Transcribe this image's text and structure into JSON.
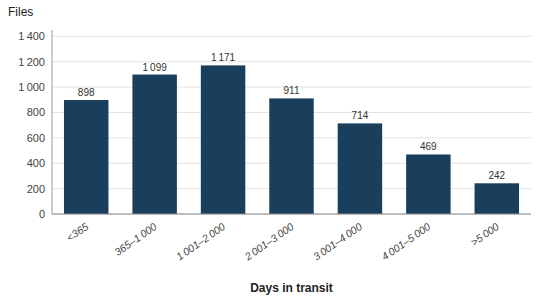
{
  "chart_data": {
    "type": "bar",
    "categories": [
      "<365",
      "365–1 000",
      "1 001–2 000",
      "2 001–3 000",
      "3 001–4 000",
      "4 001–5 000",
      ">5 000"
    ],
    "values": [
      898,
      1099,
      1171,
      911,
      714,
      469,
      242
    ],
    "value_labels": [
      "898",
      "1 099",
      "1 171",
      "911",
      "714",
      "469",
      "242"
    ],
    "data_labels": true,
    "color": "#1a3f5c",
    "xlabel": "Days in transit",
    "ylabel": "Files",
    "ylim": [
      0,
      1450
    ],
    "yticks": [
      0,
      200,
      400,
      600,
      800,
      {
        "value": 1000,
        "label": "1 000"
      },
      {
        "value": 1200,
        "label": "1 200"
      },
      {
        "value": 1400,
        "label": "1 400"
      }
    ],
    "grid": true
  }
}
